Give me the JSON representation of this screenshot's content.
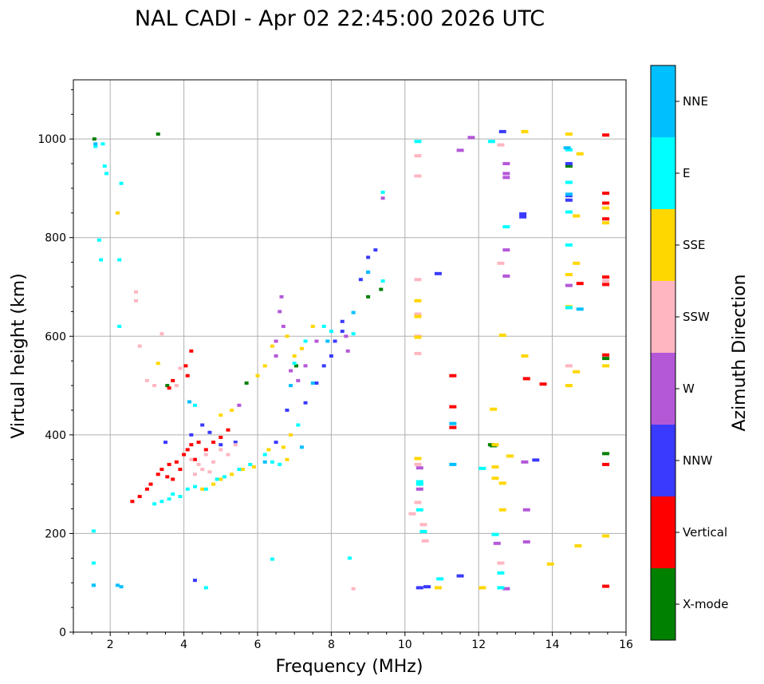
{
  "chart_data": {
    "type": "scatter",
    "title": "NAL CADI - Apr 02 22:45:00 2026 UTC",
    "xlabel": "Frequency (MHz)",
    "ylabel": "Virtual height (km)",
    "xlim": [
      1,
      16
    ],
    "ylim": [
      0,
      1120
    ],
    "xticks": [
      2,
      4,
      6,
      8,
      10,
      12,
      14,
      16
    ],
    "yticks": [
      0,
      200,
      400,
      600,
      800,
      1000
    ],
    "grid": true,
    "colorbar": {
      "label": "Azimuth Direction",
      "categories": [
        {
          "name": "X-mode",
          "color": "#008000"
        },
        {
          "name": "Vertical",
          "color": "#ff0000"
        },
        {
          "name": "NNW",
          "color": "#3a3aff"
        },
        {
          "name": "W",
          "color": "#b558d8"
        },
        {
          "name": "SSW",
          "color": "#ffb6c1"
        },
        {
          "name": "SSE",
          "color": "#ffd700"
        },
        {
          "name": "E",
          "color": "#00ffff"
        },
        {
          "name": "NNE",
          "color": "#00bfff"
        }
      ]
    },
    "series": [
      {
        "name": "X-mode",
        "points": [
          [
            1.57,
            1000
          ],
          [
            3.3,
            1010
          ],
          [
            3.55,
            500
          ],
          [
            5.7,
            505
          ],
          [
            7.05,
            540
          ],
          [
            9.0,
            680
          ],
          [
            9.35,
            695
          ],
          [
            12.35,
            380
          ],
          [
            12.4,
            378
          ],
          [
            14.45,
            945
          ],
          [
            15.45,
            362
          ],
          [
            15.45,
            555
          ]
        ]
      },
      {
        "name": "Vertical",
        "points": [
          [
            2.6,
            265
          ],
          [
            2.8,
            275
          ],
          [
            3.0,
            290
          ],
          [
            3.1,
            300
          ],
          [
            3.3,
            320
          ],
          [
            3.4,
            330
          ],
          [
            3.55,
            315
          ],
          [
            3.6,
            340
          ],
          [
            3.7,
            310
          ],
          [
            3.8,
            345
          ],
          [
            3.9,
            330
          ],
          [
            4.0,
            360
          ],
          [
            4.1,
            370
          ],
          [
            4.2,
            380
          ],
          [
            4.3,
            350
          ],
          [
            4.4,
            385
          ],
          [
            4.6,
            370
          ],
          [
            4.8,
            385
          ],
          [
            5.0,
            395
          ],
          [
            5.2,
            410
          ],
          [
            4.05,
            540
          ],
          [
            4.1,
            520
          ],
          [
            4.2,
            570
          ],
          [
            3.6,
            495
          ],
          [
            3.7,
            510
          ],
          [
            11.3,
            520
          ],
          [
            11.3,
            457
          ],
          [
            11.3,
            415
          ],
          [
            13.3,
            514
          ],
          [
            13.75,
            503
          ],
          [
            14.75,
            707
          ],
          [
            15.45,
            705
          ],
          [
            15.45,
            720
          ],
          [
            15.45,
            890
          ],
          [
            15.45,
            870
          ],
          [
            15.45,
            838
          ],
          [
            15.45,
            1008
          ],
          [
            15.45,
            340
          ],
          [
            15.45,
            562
          ],
          [
            15.45,
            93
          ]
        ]
      },
      {
        "name": "NNW",
        "points": [
          [
            4.2,
            400
          ],
          [
            4.5,
            420
          ],
          [
            4.7,
            405
          ],
          [
            5.0,
            380
          ],
          [
            5.4,
            385
          ],
          [
            6.5,
            385
          ],
          [
            6.8,
            450
          ],
          [
            7.3,
            465
          ],
          [
            7.6,
            505
          ],
          [
            7.8,
            540
          ],
          [
            8.0,
            560
          ],
          [
            8.1,
            590
          ],
          [
            8.3,
            610
          ],
          [
            8.3,
            630
          ],
          [
            8.8,
            715
          ],
          [
            9.0,
            760
          ],
          [
            9.2,
            775
          ],
          [
            9.0,
            730
          ],
          [
            10.9,
            727
          ],
          [
            10.4,
            90
          ],
          [
            10.6,
            92
          ],
          [
            11.5,
            114
          ],
          [
            13.2,
            842
          ],
          [
            13.2,
            848
          ],
          [
            13.55,
            349
          ],
          [
            14.45,
            950
          ],
          [
            14.45,
            885
          ],
          [
            14.45,
            876
          ],
          [
            12.65,
            1015
          ],
          [
            3.5,
            385
          ],
          [
            4.3,
            105
          ]
        ]
      },
      {
        "name": "W",
        "points": [
          [
            6.65,
            680
          ],
          [
            6.6,
            650
          ],
          [
            6.7,
            620
          ],
          [
            6.5,
            590
          ],
          [
            6.5,
            560
          ],
          [
            6.9,
            530
          ],
          [
            7.1,
            510
          ],
          [
            7.3,
            540
          ],
          [
            7.6,
            590
          ],
          [
            8.4,
            600
          ],
          [
            8.45,
            570
          ],
          [
            9.4,
            880
          ],
          [
            11.5,
            977
          ],
          [
            11.8,
            1003
          ],
          [
            12.75,
            950
          ],
          [
            12.75,
            930
          ],
          [
            12.75,
            922
          ],
          [
            12.75,
            775
          ],
          [
            12.75,
            722
          ],
          [
            12.75,
            88
          ],
          [
            12.5,
            180
          ],
          [
            13.3,
            183
          ],
          [
            13.3,
            248
          ],
          [
            13.25,
            345
          ],
          [
            14.45,
            703
          ],
          [
            10.4,
            290
          ],
          [
            10.4,
            333
          ],
          [
            5.5,
            460
          ]
        ]
      },
      {
        "name": "SSW",
        "points": [
          [
            2.7,
            690
          ],
          [
            2.7,
            672
          ],
          [
            2.8,
            580
          ],
          [
            3.0,
            510
          ],
          [
            3.2,
            500
          ],
          [
            3.4,
            605
          ],
          [
            3.8,
            500
          ],
          [
            3.9,
            535
          ],
          [
            4.2,
            350
          ],
          [
            4.4,
            340
          ],
          [
            4.5,
            330
          ],
          [
            4.6,
            360
          ],
          [
            4.8,
            345
          ],
          [
            5.0,
            370
          ],
          [
            5.2,
            360
          ],
          [
            5.4,
            380
          ],
          [
            4.3,
            320
          ],
          [
            4.7,
            325
          ],
          [
            10.35,
            966
          ],
          [
            10.35,
            925
          ],
          [
            10.35,
            715
          ],
          [
            10.35,
            645
          ],
          [
            10.35,
            600
          ],
          [
            10.35,
            565
          ],
          [
            10.35,
            340
          ],
          [
            10.35,
            263
          ],
          [
            10.5,
            218
          ],
          [
            10.55,
            185
          ],
          [
            10.2,
            240
          ],
          [
            12.6,
            988
          ],
          [
            12.6,
            748
          ],
          [
            12.6,
            140
          ],
          [
            14.45,
            540
          ],
          [
            15.45,
            712
          ],
          [
            8.6,
            88
          ]
        ]
      },
      {
        "name": "SSE",
        "points": [
          [
            2.2,
            850
          ],
          [
            3.3,
            545
          ],
          [
            4.5,
            290
          ],
          [
            4.8,
            300
          ],
          [
            5.0,
            310
          ],
          [
            5.3,
            320
          ],
          [
            5.6,
            330
          ],
          [
            5.9,
            335
          ],
          [
            6.0,
            520
          ],
          [
            6.2,
            540
          ],
          [
            6.4,
            580
          ],
          [
            6.8,
            600
          ],
          [
            7.0,
            560
          ],
          [
            7.2,
            575
          ],
          [
            7.5,
            620
          ],
          [
            6.3,
            370
          ],
          [
            6.7,
            375
          ],
          [
            6.8,
            350
          ],
          [
            6.9,
            400
          ],
          [
            5.3,
            450
          ],
          [
            5.0,
            440
          ],
          [
            10.35,
            672
          ],
          [
            10.35,
            640
          ],
          [
            10.35,
            598
          ],
          [
            10.35,
            352
          ],
          [
            10.9,
            90
          ],
          [
            12.1,
            90
          ],
          [
            12.4,
            452
          ],
          [
            12.45,
            380
          ],
          [
            12.45,
            335
          ],
          [
            12.45,
            312
          ],
          [
            12.65,
            302
          ],
          [
            12.65,
            248
          ],
          [
            12.65,
            602
          ],
          [
            12.85,
            357
          ],
          [
            13.25,
            560
          ],
          [
            13.25,
            1015
          ],
          [
            13.95,
            138
          ],
          [
            14.45,
            1010
          ],
          [
            14.45,
            725
          ],
          [
            14.45,
            660
          ],
          [
            14.45,
            500
          ],
          [
            14.65,
            528
          ],
          [
            14.65,
            748
          ],
          [
            14.75,
            970
          ],
          [
            14.7,
            175
          ],
          [
            14.65,
            844
          ],
          [
            15.45,
            195
          ],
          [
            15.45,
            540
          ],
          [
            15.45,
            830
          ],
          [
            15.45,
            860
          ]
        ]
      },
      {
        "name": "E",
        "points": [
          [
            1.55,
            205
          ],
          [
            1.55,
            140
          ],
          [
            1.55,
            95
          ],
          [
            1.6,
            985
          ],
          [
            1.7,
            795
          ],
          [
            1.75,
            755
          ],
          [
            1.8,
            990
          ],
          [
            1.85,
            945
          ],
          [
            1.9,
            930
          ],
          [
            2.25,
            620
          ],
          [
            2.25,
            755
          ],
          [
            2.3,
            910
          ],
          [
            3.2,
            260
          ],
          [
            3.4,
            265
          ],
          [
            3.6,
            270
          ],
          [
            3.7,
            280
          ],
          [
            3.9,
            275
          ],
          [
            4.1,
            290
          ],
          [
            4.3,
            295
          ],
          [
            4.6,
            290
          ],
          [
            4.9,
            310
          ],
          [
            5.1,
            315
          ],
          [
            5.5,
            330
          ],
          [
            5.8,
            340
          ],
          [
            6.2,
            360
          ],
          [
            6.4,
            345
          ],
          [
            6.6,
            340
          ],
          [
            7.0,
            545
          ],
          [
            7.1,
            420
          ],
          [
            7.3,
            590
          ],
          [
            7.8,
            620
          ],
          [
            8.0,
            610
          ],
          [
            8.5,
            150
          ],
          [
            6.4,
            148
          ],
          [
            4.6,
            90
          ],
          [
            4.3,
            460
          ],
          [
            10.35,
            995
          ],
          [
            10.4,
            300
          ],
          [
            10.4,
            305
          ],
          [
            10.4,
            248
          ],
          [
            10.5,
            204
          ],
          [
            10.95,
            108
          ],
          [
            12.1,
            332
          ],
          [
            12.35,
            995
          ],
          [
            12.45,
            198
          ],
          [
            12.6,
            120
          ],
          [
            12.6,
            90
          ],
          [
            12.75,
            822
          ],
          [
            14.45,
            978
          ],
          [
            14.45,
            912
          ],
          [
            14.45,
            852
          ],
          [
            14.45,
            785
          ],
          [
            14.45,
            658
          ],
          [
            8.6,
            605
          ],
          [
            9.4,
            712
          ],
          [
            9.4,
            892
          ]
        ]
      },
      {
        "name": "NNE",
        "points": [
          [
            1.6,
            990
          ],
          [
            1.55,
            95
          ],
          [
            2.2,
            95
          ],
          [
            2.3,
            92
          ],
          [
            4.15,
            467
          ],
          [
            6.2,
            345
          ],
          [
            6.9,
            500
          ],
          [
            7.5,
            505
          ],
          [
            7.9,
            590
          ],
          [
            8.6,
            648
          ],
          [
            9.0,
            730
          ],
          [
            11.3,
            423
          ],
          [
            11.3,
            340
          ],
          [
            14.4,
            982
          ],
          [
            14.45,
            888
          ],
          [
            14.75,
            655
          ],
          [
            7.2,
            375
          ]
        ]
      }
    ]
  }
}
